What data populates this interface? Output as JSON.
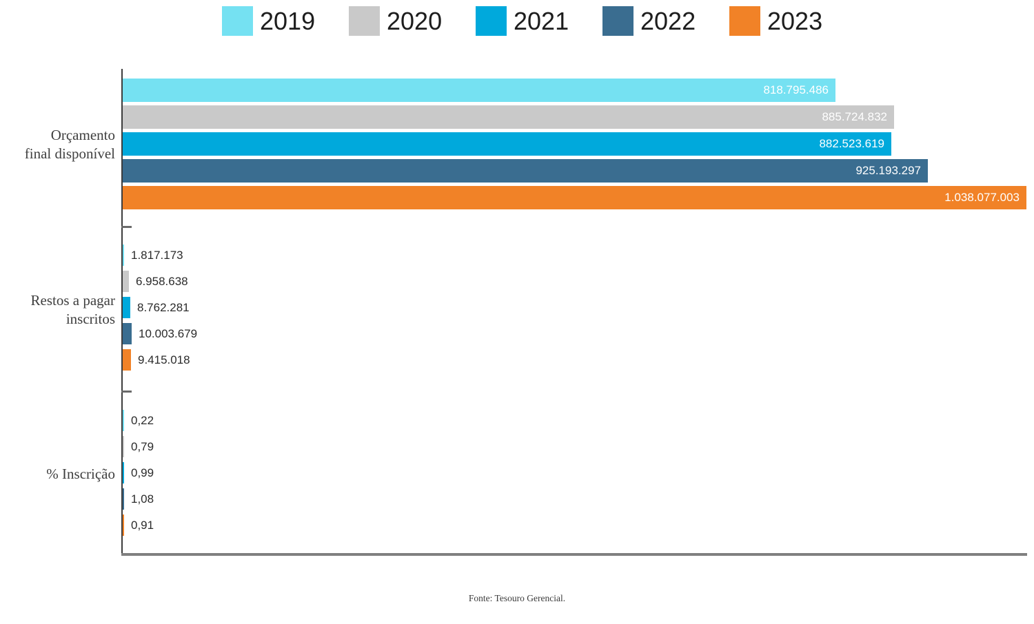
{
  "legend": {
    "items": [
      {
        "label": "2019",
        "color": "#75E1F2"
      },
      {
        "label": "2020",
        "color": "#C9C9C9"
      },
      {
        "label": "2021",
        "color": "#00A9DC"
      },
      {
        "label": "2022",
        "color": "#3A6D90"
      },
      {
        "label": "2023",
        "color": "#F18227"
      }
    ]
  },
  "footer": {
    "source_note": "Fonte:  Tesouro Gerencial."
  },
  "chart_data": {
    "type": "bar",
    "orientation": "horizontal",
    "title": "",
    "xlabel": "",
    "ylabel": "",
    "grid": false,
    "legend_position": "top",
    "x_axis_max": 1038077003,
    "categories": [
      "Orçamento final disponível",
      "Restos a pagar inscritos",
      "% Inscrição"
    ],
    "category_label_lines": [
      [
        "Orçamento",
        "final disponível"
      ],
      [
        "Restos a pagar",
        "inscritos"
      ],
      [
        "% Inscrição"
      ]
    ],
    "series": [
      {
        "name": "2019",
        "color": "#75E1F2",
        "values": [
          818795486,
          1817173,
          0.22
        ],
        "value_labels": [
          "818.795.486",
          "1.817.173",
          "0,22"
        ]
      },
      {
        "name": "2020",
        "color": "#C9C9C9",
        "values": [
          885724832,
          6958638,
          0.79
        ],
        "value_labels": [
          "885.724.832",
          "6.958.638",
          "0,79"
        ]
      },
      {
        "name": "2021",
        "color": "#00A9DC",
        "values": [
          882523619,
          8762281,
          0.99
        ],
        "value_labels": [
          "882.523.619",
          "8.762.281",
          "0,99"
        ]
      },
      {
        "name": "2022",
        "color": "#3A6D90",
        "values": [
          925193297,
          10003679,
          1.08
        ],
        "value_labels": [
          "925.193.297",
          "10.003.679",
          "1,08"
        ]
      },
      {
        "name": "2023",
        "color": "#F18227",
        "values": [
          1038077003,
          9415018,
          0.91
        ],
        "value_labels": [
          "1.038.077.003",
          "9.415.018",
          "0,91"
        ]
      }
    ],
    "value_label_placement_by_group": [
      "inside-end",
      "outside-end",
      "outside-end"
    ],
    "source_note": "Fonte:  Tesouro Gerencial."
  }
}
